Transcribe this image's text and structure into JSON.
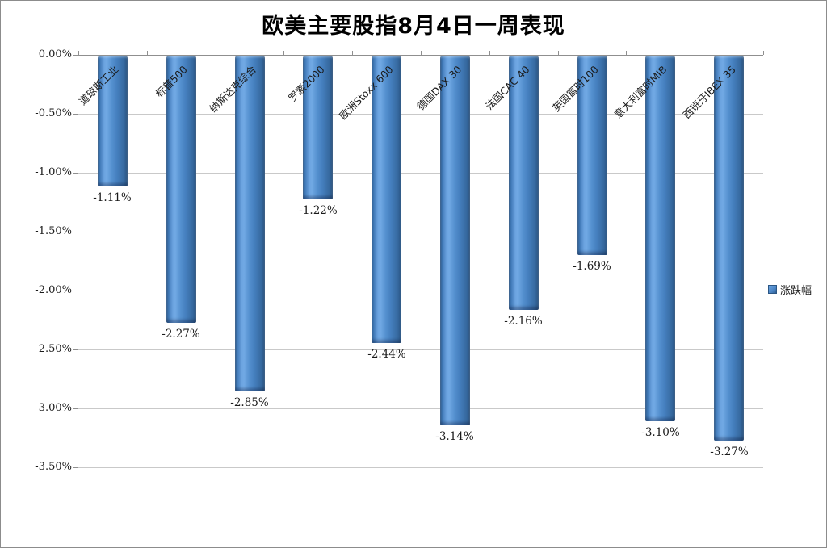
{
  "chart_data": {
    "type": "bar",
    "title": "欧美主要股指8月4日一周表现",
    "categories": [
      "道琼斯工业",
      "标普500",
      "纳斯达克综合",
      "罗素2000",
      "欧洲Stoxx 600",
      "德国DAX 30",
      "法国CAC 40",
      "英国富时100",
      "意大利富时MIB",
      "西班牙IBEX 35"
    ],
    "series": [
      {
        "name": "涨跌幅",
        "values": [
          -1.11,
          -2.27,
          -2.85,
          -1.22,
          -2.44,
          -3.14,
          -2.16,
          -1.69,
          -3.1,
          -3.27
        ]
      }
    ],
    "data_labels": [
      "-1.11%",
      "-2.27%",
      "-2.85%",
      "-1.22%",
      "-2.44%",
      "-3.14%",
      "-2.16%",
      "-1.69%",
      "-3.10%",
      "-3.27%"
    ],
    "y_ticks": [
      "0.00%",
      "-0.50%",
      "-1.00%",
      "-1.50%",
      "-2.00%",
      "-2.50%",
      "-3.00%",
      "-3.50%"
    ],
    "ylim": [
      -3.5,
      0
    ],
    "grid": true,
    "legend_position": "right",
    "bar_color": "#4a84c4",
    "axis_color": "#8f8f8f",
    "gridline_color": "#c9c9c9"
  }
}
